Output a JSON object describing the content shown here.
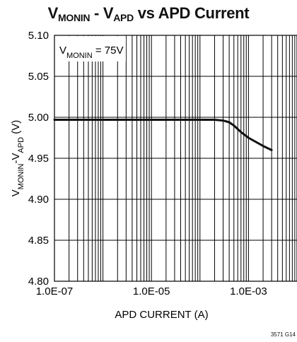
{
  "chart_data": {
    "type": "line",
    "title_parts": [
      {
        "text": "V",
        "sub": "MONIN"
      },
      {
        "text": " - V",
        "sub": "APD"
      },
      {
        "text": " vs APD Current",
        "sub": ""
      }
    ],
    "xlabel": "APD CURRENT (A)",
    "ylabel_parts": [
      {
        "text": "V",
        "sub": "MONIN"
      },
      {
        "text": "-V",
        "sub": "APD"
      },
      {
        "text": " (V)",
        "sub": ""
      }
    ],
    "x_scale": "log",
    "xlim": [
      1e-07,
      0.01
    ],
    "ylim": [
      4.8,
      5.1
    ],
    "x_ticks": [
      1e-07,
      1e-05,
      0.001
    ],
    "x_tick_labels": [
      "1.0E-07",
      "1.0E-05",
      "1.0E-03"
    ],
    "y_ticks": [
      4.8,
      4.85,
      4.9,
      4.95,
      5.0,
      5.05,
      5.1
    ],
    "y_tick_labels": [
      "4.80",
      "4.85",
      "4.90",
      "4.95",
      "5.00",
      "5.05",
      "5.10"
    ],
    "grid": true,
    "annotation_parts": [
      {
        "text": "V",
        "sub": "MONIN"
      },
      {
        "text": " = 75V",
        "sub": ""
      }
    ],
    "series": [
      {
        "x": [
          1e-07,
          1e-06,
          1e-05,
          0.0001,
          0.0002,
          0.0003,
          0.0004,
          0.0005,
          0.0007,
          0.001,
          0.002,
          0.003
        ],
        "y": [
          4.997,
          4.997,
          4.997,
          4.997,
          4.997,
          4.996,
          4.994,
          4.99,
          4.982,
          4.975,
          4.965,
          4.96
        ]
      }
    ],
    "line_color": "#111111"
  },
  "figure_code": "3571 G14"
}
